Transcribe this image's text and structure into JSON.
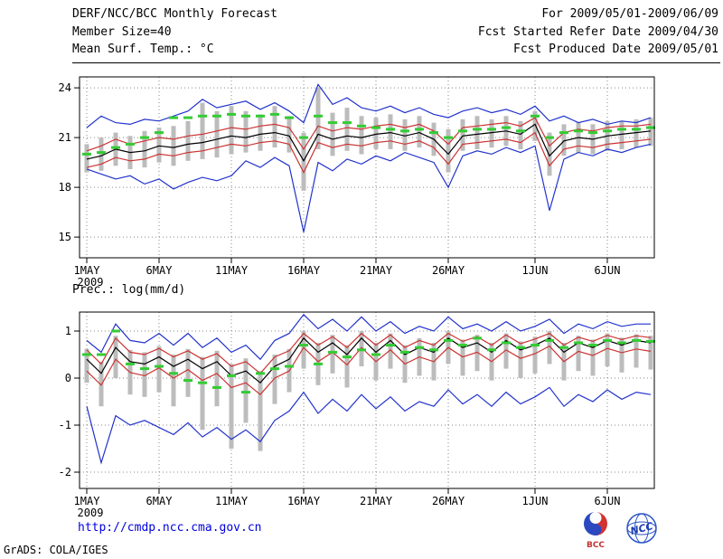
{
  "header": {
    "title": "DERF/NCC/BCC Monthly Forecast",
    "member_size": "Member Size=40",
    "for_range": "For 2009/05/01-2009/06/09",
    "refer_date": "Fcst Started Refer Date 2009/04/30",
    "produced_date": "Fcst Produced Date 2009/05/01"
  },
  "panels": {
    "temp_label": "Mean Surf. Temp.: °C",
    "prec_label": "Prec.: log(mm/d)"
  },
  "footer": {
    "url": "http://cmdp.ncc.cma.gov.cn",
    "grads_credit": "GrADS: COLA/IGES",
    "logo_bcc": "BCC",
    "logo_ncc": "NCC"
  },
  "colors": {
    "envelope_blue": "#2233cc",
    "quartile_red": "#cc3333",
    "mean_black": "#000000",
    "reference_green": "#33cc33",
    "spread_bar_gray": "#bcbcbc",
    "url_blue": "#0000dd"
  },
  "chart_data": [
    {
      "type": "line",
      "name": "surface-temperature",
      "title": "Mean Surf. Temp.: °C",
      "grid": "dotted",
      "legend": "none",
      "n_days": 40,
      "xtick_labels": [
        "1MAY",
        "6MAY",
        "11MAY",
        "16MAY",
        "21MAY",
        "26MAY",
        "1JUN",
        "6JUN"
      ],
      "xtick_indices": [
        0,
        5,
        10,
        15,
        20,
        25,
        31,
        36
      ],
      "year_label": "2009",
      "ylim": [
        13.75,
        24.66
      ],
      "yticks": [
        15,
        18,
        21,
        24
      ],
      "series": [
        {
          "name": "ensemble-max",
          "color": "#2233cc",
          "style": "solid",
          "values": [
            21.6,
            22.3,
            21.9,
            21.8,
            22.1,
            22.0,
            22.3,
            22.6,
            23.3,
            22.8,
            23.0,
            23.2,
            22.7,
            23.1,
            22.6,
            21.9,
            24.2,
            23.0,
            23.4,
            22.8,
            22.6,
            22.9,
            22.5,
            22.8,
            22.4,
            22.2,
            22.6,
            22.8,
            22.5,
            22.7,
            22.4,
            22.9,
            22.0,
            22.3,
            21.9,
            22.1,
            21.8,
            22.0,
            21.9,
            22.2
          ]
        },
        {
          "name": "ensemble-min",
          "color": "#2233cc",
          "style": "solid",
          "values": [
            19.1,
            18.8,
            18.5,
            18.7,
            18.2,
            18.5,
            17.9,
            18.3,
            18.6,
            18.4,
            18.7,
            19.6,
            19.2,
            19.8,
            19.3,
            15.3,
            19.5,
            19.0,
            19.7,
            19.4,
            19.9,
            19.6,
            20.1,
            19.8,
            19.5,
            18.0,
            19.9,
            20.2,
            20.0,
            20.4,
            20.1,
            20.5,
            16.6,
            19.7,
            20.1,
            19.9,
            20.3,
            20.1,
            20.4,
            20.6
          ]
        },
        {
          "name": "upper-quartile",
          "color": "#cc3333",
          "style": "solid",
          "values": [
            20.2,
            20.5,
            20.9,
            20.6,
            20.8,
            21.0,
            20.9,
            21.1,
            21.2,
            21.4,
            21.6,
            21.5,
            21.7,
            21.8,
            21.6,
            20.3,
            21.7,
            21.4,
            21.6,
            21.5,
            21.7,
            21.8,
            21.6,
            21.8,
            21.4,
            20.6,
            21.6,
            21.7,
            21.8,
            21.9,
            21.7,
            22.2,
            20.5,
            21.3,
            21.5,
            21.4,
            21.6,
            21.7,
            21.7,
            21.8
          ]
        },
        {
          "name": "lower-quartile",
          "color": "#cc3333",
          "style": "solid",
          "values": [
            19.2,
            19.4,
            19.8,
            19.6,
            19.7,
            20.0,
            19.9,
            20.1,
            20.2,
            20.4,
            20.6,
            20.5,
            20.7,
            20.8,
            20.6,
            18.9,
            20.7,
            20.4,
            20.6,
            20.5,
            20.7,
            20.8,
            20.6,
            20.8,
            20.4,
            19.4,
            20.6,
            20.7,
            20.8,
            20.9,
            20.7,
            21.3,
            19.3,
            20.3,
            20.5,
            20.4,
            20.6,
            20.7,
            20.8,
            20.9
          ]
        },
        {
          "name": "ensemble-mean",
          "color": "#000000",
          "style": "solid",
          "values": [
            19.7,
            19.9,
            20.3,
            20.1,
            20.2,
            20.5,
            20.4,
            20.6,
            20.7,
            20.9,
            21.1,
            21.0,
            21.2,
            21.3,
            21.1,
            19.6,
            21.2,
            20.9,
            21.1,
            21.0,
            21.2,
            21.3,
            21.1,
            21.3,
            20.9,
            20.0,
            21.1,
            21.2,
            21.3,
            21.4,
            21.2,
            21.8,
            19.9,
            20.8,
            21.0,
            20.9,
            21.1,
            21.2,
            21.3,
            21.4
          ]
        },
        {
          "name": "reference-dashed",
          "color": "#33cc33",
          "style": "dash-segments",
          "values": [
            20.0,
            20.1,
            20.4,
            20.6,
            21.0,
            21.3,
            22.2,
            22.2,
            22.3,
            22.3,
            22.4,
            22.3,
            22.3,
            22.4,
            22.2,
            21.0,
            22.3,
            21.9,
            21.9,
            21.7,
            21.6,
            21.5,
            21.4,
            21.5,
            21.3,
            21.0,
            21.4,
            21.5,
            21.5,
            21.6,
            21.4,
            22.3,
            21.0,
            21.3,
            21.4,
            21.3,
            21.4,
            21.5,
            21.5,
            21.6
          ]
        }
      ],
      "spread_bars": {
        "top": [
          20.6,
          21.0,
          21.3,
          21.1,
          21.4,
          21.6,
          21.7,
          22.0,
          23.1,
          22.6,
          22.9,
          22.6,
          22.4,
          22.9,
          22.3,
          21.3,
          24.0,
          22.5,
          22.8,
          22.3,
          22.2,
          22.4,
          22.1,
          22.3,
          21.9,
          21.5,
          22.1,
          22.3,
          22.1,
          22.3,
          22.0,
          22.6,
          21.3,
          21.8,
          21.9,
          21.8,
          22.0,
          22.0,
          22.1,
          22.2
        ],
        "bottom": [
          18.9,
          19.0,
          19.3,
          19.1,
          19.2,
          19.5,
          19.3,
          19.6,
          19.7,
          19.8,
          20.0,
          20.1,
          20.2,
          20.4,
          20.1,
          17.8,
          20.3,
          19.9,
          20.2,
          20.0,
          20.3,
          20.3,
          20.2,
          20.4,
          19.9,
          18.9,
          20.2,
          20.3,
          20.4,
          20.5,
          20.3,
          20.8,
          18.7,
          19.9,
          20.1,
          20.0,
          20.2,
          20.3,
          20.4,
          20.5
        ]
      }
    },
    {
      "type": "line",
      "name": "precipitation",
      "title": "Prec.: log(mm/d)",
      "grid": "dotted",
      "legend": "none",
      "n_days": 40,
      "xtick_labels": [
        "1MAY",
        "6MAY",
        "11MAY",
        "16MAY",
        "21MAY",
        "26MAY",
        "1JUN",
        "6JUN"
      ],
      "xtick_indices": [
        0,
        5,
        10,
        15,
        20,
        25,
        31,
        36
      ],
      "year_label": "2009",
      "ylim": [
        -2.346,
        1.404
      ],
      "yticks": [
        -2,
        -1,
        0,
        1
      ],
      "series": [
        {
          "name": "ensemble-max",
          "color": "#2233cc",
          "style": "solid",
          "values": [
            0.8,
            0.55,
            1.15,
            0.8,
            0.75,
            0.95,
            0.7,
            0.95,
            0.65,
            0.85,
            0.55,
            0.7,
            0.4,
            0.8,
            0.95,
            1.35,
            1.05,
            1.25,
            1.0,
            1.3,
            1.0,
            1.2,
            0.95,
            1.1,
            1.0,
            1.3,
            1.05,
            1.15,
            1.0,
            1.2,
            1.0,
            1.1,
            1.25,
            0.95,
            1.15,
            1.05,
            1.2,
            1.1,
            1.15,
            1.15
          ]
        },
        {
          "name": "ensemble-min",
          "color": "#2233cc",
          "style": "solid",
          "values": [
            -0.6,
            -1.8,
            -0.8,
            -1.0,
            -0.9,
            -1.05,
            -1.2,
            -0.95,
            -1.25,
            -1.05,
            -1.3,
            -1.1,
            -1.35,
            -0.9,
            -0.7,
            -0.3,
            -0.75,
            -0.45,
            -0.7,
            -0.35,
            -0.65,
            -0.4,
            -0.7,
            -0.5,
            -0.6,
            -0.25,
            -0.55,
            -0.35,
            -0.6,
            -0.3,
            -0.55,
            -0.4,
            -0.2,
            -0.6,
            -0.35,
            -0.5,
            -0.25,
            -0.45,
            -0.3,
            -0.35
          ]
        },
        {
          "name": "upper-quartile",
          "color": "#cc3333",
          "style": "solid",
          "values": [
            0.6,
            0.3,
            0.85,
            0.55,
            0.5,
            0.63,
            0.45,
            0.58,
            0.4,
            0.52,
            0.25,
            0.35,
            0.1,
            0.45,
            0.58,
            0.95,
            0.7,
            0.88,
            0.65,
            0.95,
            0.7,
            0.92,
            0.65,
            0.8,
            0.7,
            0.95,
            0.78,
            0.88,
            0.7,
            0.92,
            0.73,
            0.83,
            0.95,
            0.7,
            0.87,
            0.78,
            0.91,
            0.82,
            0.9,
            0.86
          ]
        },
        {
          "name": "lower-quartile",
          "color": "#cc3333",
          "style": "solid",
          "values": [
            0.15,
            -0.15,
            0.4,
            0.12,
            0.05,
            0.22,
            0.0,
            0.18,
            -0.05,
            0.1,
            -0.2,
            -0.1,
            -0.35,
            0.0,
            0.15,
            0.65,
            0.35,
            0.55,
            0.28,
            0.65,
            0.35,
            0.6,
            0.3,
            0.45,
            0.35,
            0.65,
            0.45,
            0.55,
            0.35,
            0.6,
            0.42,
            0.52,
            0.68,
            0.35,
            0.57,
            0.48,
            0.63,
            0.54,
            0.62,
            0.57
          ]
        },
        {
          "name": "ensemble-mean",
          "color": "#000000",
          "style": "solid",
          "values": [
            0.4,
            0.1,
            0.65,
            0.35,
            0.3,
            0.45,
            0.25,
            0.4,
            0.2,
            0.35,
            0.05,
            0.15,
            -0.1,
            0.25,
            0.4,
            0.85,
            0.55,
            0.75,
            0.5,
            0.85,
            0.55,
            0.8,
            0.5,
            0.65,
            0.55,
            0.85,
            0.65,
            0.75,
            0.55,
            0.8,
            0.6,
            0.7,
            0.85,
            0.55,
            0.75,
            0.65,
            0.8,
            0.7,
            0.8,
            0.75
          ]
        },
        {
          "name": "reference-dashed",
          "color": "#33cc33",
          "style": "dash-segments",
          "values": [
            0.5,
            0.5,
            1.0,
            0.3,
            0.2,
            0.25,
            0.1,
            -0.05,
            -0.1,
            -0.2,
            0.05,
            -0.3,
            0.1,
            0.2,
            0.25,
            0.7,
            0.3,
            0.55,
            0.45,
            0.6,
            0.5,
            0.7,
            0.55,
            0.65,
            0.6,
            0.8,
            0.7,
            0.85,
            0.6,
            0.75,
            0.65,
            0.7,
            0.8,
            0.65,
            0.75,
            0.7,
            0.8,
            0.75,
            0.8,
            0.78
          ]
        }
      ],
      "spread_bars": {
        "top": [
          0.62,
          0.35,
          0.9,
          0.6,
          0.55,
          0.68,
          0.5,
          0.62,
          0.45,
          0.58,
          0.3,
          0.42,
          0.15,
          0.5,
          0.62,
          1.0,
          0.75,
          0.92,
          0.7,
          1.0,
          0.75,
          0.95,
          0.7,
          0.85,
          0.75,
          1.0,
          0.82,
          0.92,
          0.75,
          0.95,
          0.78,
          0.88,
          1.0,
          0.75,
          0.9,
          0.82,
          0.95,
          0.86,
          0.93,
          0.9
        ],
        "bottom": [
          -0.1,
          -0.6,
          0.0,
          -0.35,
          -0.4,
          -0.3,
          -0.6,
          -0.4,
          -1.1,
          -0.6,
          -1.5,
          -0.95,
          -1.55,
          -0.55,
          -0.3,
          0.2,
          -0.15,
          0.1,
          -0.2,
          0.25,
          -0.05,
          0.2,
          -0.1,
          0.05,
          -0.05,
          0.3,
          0.05,
          0.15,
          -0.05,
          0.2,
          0.0,
          0.1,
          0.3,
          -0.05,
          0.15,
          0.05,
          0.25,
          0.12,
          0.22,
          0.18
        ]
      }
    }
  ]
}
